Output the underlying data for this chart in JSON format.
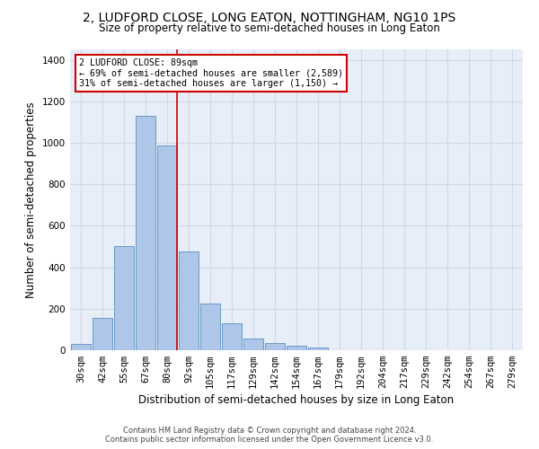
{
  "title": "2, LUDFORD CLOSE, LONG EATON, NOTTINGHAM, NG10 1PS",
  "subtitle": "Size of property relative to semi-detached houses in Long Eaton",
  "xlabel": "Distribution of semi-detached houses by size in Long Eaton",
  "ylabel": "Number of semi-detached properties",
  "categories": [
    "30sqm",
    "42sqm",
    "55sqm",
    "67sqm",
    "80sqm",
    "92sqm",
    "105sqm",
    "117sqm",
    "129sqm",
    "142sqm",
    "154sqm",
    "167sqm",
    "179sqm",
    "192sqm",
    "204sqm",
    "217sqm",
    "229sqm",
    "242sqm",
    "254sqm",
    "267sqm",
    "279sqm"
  ],
  "values": [
    30,
    155,
    500,
    1130,
    985,
    475,
    225,
    130,
    55,
    35,
    22,
    14,
    0,
    0,
    0,
    0,
    0,
    0,
    0,
    0,
    0
  ],
  "bar_color": "#aec6e8",
  "bar_edge_color": "#5a8fc2",
  "marker_label": "2 LUDFORD CLOSE: 89sqm",
  "annotation_line1": "← 69% of semi-detached houses are smaller (2,589)",
  "annotation_line2": "31% of semi-detached houses are larger (1,150) →",
  "annotation_box_color": "#ffffff",
  "annotation_box_edge": "#cc0000",
  "marker_line_color": "#cc0000",
  "ylim": [
    0,
    1450
  ],
  "yticks": [
    0,
    200,
    400,
    600,
    800,
    1000,
    1200,
    1400
  ],
  "grid_color": "#d0d8e8",
  "bg_color": "#e8eef7",
  "footer_line1": "Contains HM Land Registry data © Crown copyright and database right 2024.",
  "footer_line2": "Contains public sector information licensed under the Open Government Licence v3.0.",
  "title_fontsize": 10,
  "subtitle_fontsize": 8.5,
  "xlabel_fontsize": 8.5,
  "ylabel_fontsize": 8.5,
  "tick_fontsize": 7.5,
  "footer_fontsize": 6.0
}
